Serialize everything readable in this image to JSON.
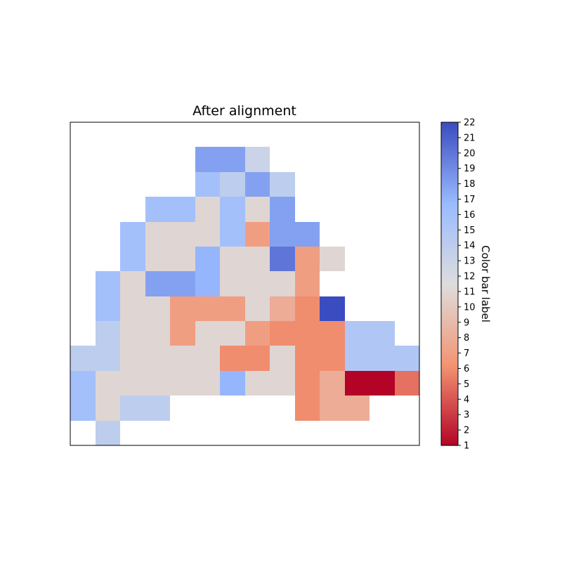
{
  "chart_data": {
    "type": "heatmap",
    "title": "After alignment",
    "colorbar": {
      "label": "Color bar label",
      "colormap": "coolwarm_r",
      "range": [
        1,
        22
      ],
      "ticks": [
        1,
        2,
        3,
        4,
        5,
        6,
        7,
        8,
        9,
        10,
        11,
        12,
        13,
        14,
        15,
        16,
        17,
        18,
        19,
        20,
        21,
        22
      ]
    },
    "xticks": "none",
    "yticks": "none",
    "grid": false,
    "n_rows": 13,
    "n_cols": 14,
    "values": [
      [
        null,
        null,
        null,
        null,
        null,
        null,
        null,
        null,
        null,
        null,
        null,
        null,
        null,
        null
      ],
      [
        null,
        null,
        null,
        null,
        null,
        18,
        18,
        13,
        null,
        null,
        null,
        null,
        null,
        null
      ],
      [
        null,
        null,
        null,
        null,
        null,
        16,
        14,
        18,
        14,
        null,
        null,
        null,
        null,
        null
      ],
      [
        null,
        null,
        null,
        16,
        16,
        11,
        16,
        11,
        18,
        null,
        null,
        null,
        null,
        null
      ],
      [
        null,
        null,
        16,
        11,
        11,
        11,
        16,
        7,
        18,
        18,
        null,
        null,
        null,
        null
      ],
      [
        null,
        null,
        16,
        11,
        11,
        17,
        11,
        11,
        20,
        7,
        11,
        null,
        null,
        null
      ],
      [
        null,
        16,
        11,
        18,
        18,
        17,
        11,
        11,
        11,
        7,
        null,
        null,
        null,
        null
      ],
      [
        null,
        16,
        11,
        11,
        7,
        7,
        7,
        11,
        8,
        6,
        22,
        null,
        null,
        null
      ],
      [
        null,
        14,
        11,
        11,
        7,
        11,
        11,
        7,
        6,
        6,
        6,
        15,
        15,
        null
      ],
      [
        14,
        14,
        11,
        11,
        11,
        11,
        6,
        6,
        11,
        6,
        6,
        15,
        15,
        15
      ],
      [
        16,
        11,
        11,
        11,
        11,
        11,
        17,
        11,
        11,
        6,
        8,
        1,
        1,
        5
      ],
      [
        16,
        11,
        14,
        14,
        null,
        null,
        null,
        null,
        null,
        6,
        8,
        8,
        null,
        null
      ],
      [
        null,
        14,
        null,
        null,
        null,
        null,
        null,
        null,
        null,
        null,
        null,
        null,
        null,
        null
      ]
    ]
  }
}
